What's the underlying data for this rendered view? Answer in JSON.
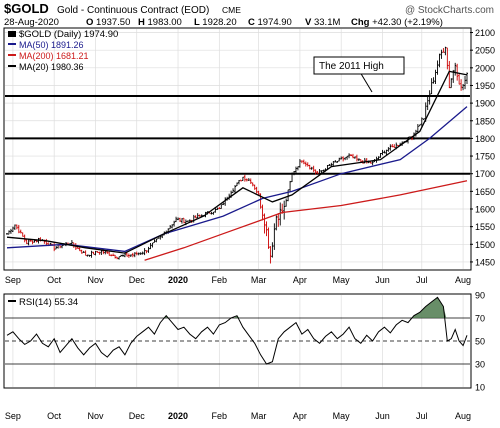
{
  "header": {
    "symbol": "$GOLD",
    "description": "Gold - Continuous Contract (EOD)",
    "exchange": "CME",
    "watermark": "@ StockCharts.com",
    "date": "28-Aug-2020",
    "quote": [
      {
        "label": "O",
        "value": "1937.50"
      },
      {
        "label": "H",
        "value": "1983.00"
      },
      {
        "label": "L",
        "value": "1928.20"
      },
      {
        "label": "C",
        "value": "1974.90"
      },
      {
        "label": "V",
        "value": "33.1M"
      },
      {
        "label": "Chg",
        "value": "+42.30 (+2.19%)"
      }
    ]
  },
  "legend": {
    "price": "$GOLD (Daily) 1974.90",
    "ma50": "MA(50) 1891.26",
    "ma200": "MA(200) 1681.21",
    "ma20": "MA(20) 1980.36"
  },
  "annotation": "The 2011 High",
  "rsi_label": "RSI(14) 55.34",
  "colors": {
    "ma50": "#1a1a8c",
    "ma200": "#cc1a1a",
    "ma20": "#000000",
    "up": "#000000",
    "down": "#cc0000",
    "rsi_fill": "#4e7a4e"
  },
  "chart_data": [
    {
      "type": "ohlc",
      "title": "$GOLD (Daily) 1974.90",
      "x_ticks": [
        "Sep",
        "Oct",
        "Nov",
        "Dec",
        "2020",
        "Feb",
        "Mar",
        "Apr",
        "May",
        "Jun",
        "Jul",
        "Aug"
      ],
      "y_ticks": [
        1450,
        1500,
        1550,
        1600,
        1650,
        1700,
        1750,
        1800,
        1850,
        1900,
        1950,
        2000,
        2050,
        2100
      ],
      "ylim": [
        1430,
        2110
      ],
      "horizontal_lines": [
        1920,
        1800,
        1700
      ],
      "price_anchors": [
        {
          "t": 0,
          "p": 1530
        },
        {
          "t": 4,
          "p": 1555
        },
        {
          "t": 10,
          "p": 1505
        },
        {
          "t": 17,
          "p": 1515
        },
        {
          "t": 24,
          "p": 1490
        },
        {
          "t": 32,
          "p": 1505
        },
        {
          "t": 40,
          "p": 1470
        },
        {
          "t": 48,
          "p": 1480
        },
        {
          "t": 56,
          "p": 1465
        },
        {
          "t": 64,
          "p": 1470
        },
        {
          "t": 70,
          "p": 1480
        },
        {
          "t": 78,
          "p": 1520
        },
        {
          "t": 86,
          "p": 1570
        },
        {
          "t": 92,
          "p": 1565
        },
        {
          "t": 100,
          "p": 1585
        },
        {
          "t": 108,
          "p": 1600
        },
        {
          "t": 114,
          "p": 1650
        },
        {
          "t": 120,
          "p": 1690
        },
        {
          "t": 124,
          "p": 1680
        },
        {
          "t": 128,
          "p": 1640
        },
        {
          "t": 131,
          "p": 1570
        },
        {
          "t": 134,
          "p": 1470
        },
        {
          "t": 137,
          "p": 1580
        },
        {
          "t": 141,
          "p": 1600
        },
        {
          "t": 145,
          "p": 1700
        },
        {
          "t": 150,
          "p": 1740
        },
        {
          "t": 158,
          "p": 1700
        },
        {
          "t": 166,
          "p": 1730
        },
        {
          "t": 174,
          "p": 1750
        },
        {
          "t": 180,
          "p": 1735
        },
        {
          "t": 186,
          "p": 1730
        },
        {
          "t": 192,
          "p": 1765
        },
        {
          "t": 198,
          "p": 1780
        },
        {
          "t": 206,
          "p": 1805
        },
        {
          "t": 212,
          "p": 1860
        },
        {
          "t": 216,
          "p": 1950
        },
        {
          "t": 220,
          "p": 2030
        },
        {
          "t": 223,
          "p": 2065
        },
        {
          "t": 225,
          "p": 1950
        },
        {
          "t": 228,
          "p": 2010
        },
        {
          "t": 231,
          "p": 1940
        },
        {
          "t": 234,
          "p": 1975
        }
      ],
      "series": [
        {
          "name": "MA(50)",
          "values": [
            [
              0,
              1490
            ],
            [
              30,
              1500
            ],
            [
              60,
              1480
            ],
            [
              80,
              1530
            ],
            [
              110,
              1580
            ],
            [
              130,
              1630
            ],
            [
              145,
              1650
            ],
            [
              170,
              1700
            ],
            [
              200,
              1740
            ],
            [
              215,
              1800
            ],
            [
              234,
              1890
            ]
          ]
        },
        {
          "name": "MA(200)",
          "values": [
            [
              70,
              1455
            ],
            [
              90,
              1490
            ],
            [
              110,
              1530
            ],
            [
              140,
              1590
            ],
            [
              170,
              1610
            ],
            [
              200,
              1640
            ],
            [
              234,
              1680
            ]
          ]
        },
        {
          "name": "MA(20)",
          "values": [
            [
              0,
              1520
            ],
            [
              20,
              1510
            ],
            [
              40,
              1490
            ],
            [
              60,
              1475
            ],
            [
              80,
              1530
            ],
            [
              100,
              1580
            ],
            [
              120,
              1660
            ],
            [
              135,
              1620
            ],
            [
              145,
              1640
            ],
            [
              165,
              1720
            ],
            [
              190,
              1740
            ],
            [
              210,
              1820
            ],
            [
              225,
              1990
            ],
            [
              234,
              1980
            ]
          ]
        }
      ]
    },
    {
      "type": "line",
      "title": "RSI(14) 55.34",
      "x_ticks": [
        "Sep",
        "Oct",
        "Nov",
        "Dec",
        "2020",
        "Feb",
        "Mar",
        "Apr",
        "May",
        "Jun",
        "Jul",
        "Aug"
      ],
      "y_ticks": [
        10,
        30,
        50,
        70,
        90
      ],
      "ylim": [
        10,
        90
      ],
      "reference_lines": [
        30,
        50,
        70
      ],
      "series": [
        {
          "name": "RSI(14)",
          "values": [
            [
              0,
              55
            ],
            [
              3,
              58
            ],
            [
              6,
              52
            ],
            [
              9,
              47
            ],
            [
              12,
              50
            ],
            [
              15,
              56
            ],
            [
              18,
              48
            ],
            [
              21,
              45
            ],
            [
              24,
              52
            ],
            [
              27,
              40
            ],
            [
              30,
              46
            ],
            [
              33,
              52
            ],
            [
              36,
              44
            ],
            [
              39,
              38
            ],
            [
              42,
              44
            ],
            [
              45,
              48
            ],
            [
              48,
              40
            ],
            [
              51,
              36
            ],
            [
              54,
              42
            ],
            [
              57,
              45
            ],
            [
              60,
              38
            ],
            [
              63,
              48
            ],
            [
              66,
              54
            ],
            [
              69,
              58
            ],
            [
              72,
              62
            ],
            [
              75,
              56
            ],
            [
              78,
              66
            ],
            [
              81,
              72
            ],
            [
              84,
              66
            ],
            [
              87,
              60
            ],
            [
              90,
              62
            ],
            [
              93,
              56
            ],
            [
              96,
              52
            ],
            [
              99,
              58
            ],
            [
              102,
              62
            ],
            [
              105,
              56
            ],
            [
              108,
              64
            ],
            [
              111,
              66
            ],
            [
              114,
              70
            ],
            [
              117,
              72
            ],
            [
              120,
              62
            ],
            [
              123,
              55
            ],
            [
              126,
              48
            ],
            [
              129,
              38
            ],
            [
              132,
              30
            ],
            [
              135,
              32
            ],
            [
              138,
              52
            ],
            [
              141,
              58
            ],
            [
              144,
              62
            ],
            [
              147,
              66
            ],
            [
              150,
              56
            ],
            [
              153,
              60
            ],
            [
              156,
              52
            ],
            [
              159,
              48
            ],
            [
              162,
              54
            ],
            [
              165,
              58
            ],
            [
              168,
              52
            ],
            [
              171,
              56
            ],
            [
              174,
              62
            ],
            [
              177,
              52
            ],
            [
              180,
              48
            ],
            [
              183,
              55
            ],
            [
              186,
              50
            ],
            [
              189,
              58
            ],
            [
              192,
              62
            ],
            [
              195,
              57
            ],
            [
              198,
              64
            ],
            [
              201,
              68
            ],
            [
              204,
              66
            ],
            [
              207,
              72
            ],
            [
              210,
              75
            ],
            [
              213,
              80
            ],
            [
              216,
              84
            ],
            [
              219,
              88
            ],
            [
              222,
              80
            ],
            [
              224,
              50
            ],
            [
              226,
              52
            ],
            [
              228,
              60
            ],
            [
              230,
              50
            ],
            [
              232,
              46
            ],
            [
              234,
              55
            ]
          ]
        }
      ]
    }
  ]
}
